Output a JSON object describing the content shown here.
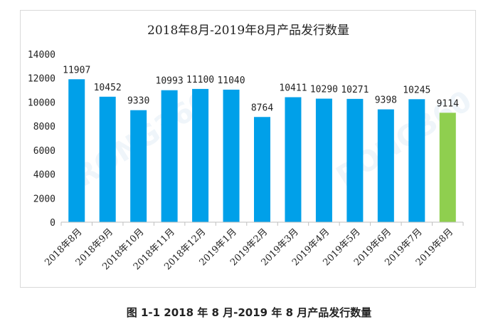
{
  "chart_data": {
    "type": "bar",
    "title": "2018年8月-2019年8月产品发行数量",
    "xlabel": "",
    "ylabel": "",
    "ylim": [
      0,
      14000
    ],
    "yticks": [
      0,
      2000,
      4000,
      6000,
      8000,
      10000,
      12000,
      14000
    ],
    "grid": false,
    "legend": "none",
    "categories": [
      "2018年8月",
      "2018年9月",
      "2018年10月",
      "2018年11月",
      "2018年12月",
      "2019年1月",
      "2019年2月",
      "2019年3月",
      "2019年4月",
      "2019年5月",
      "2019年6月",
      "2019年7月",
      "2019年8月"
    ],
    "values": [
      11907,
      10452,
      9330,
      10993,
      11100,
      11040,
      8764,
      10411,
      10290,
      10271,
      9398,
      10245,
      9114
    ],
    "data_labels": true,
    "colors": {
      "default": "#00a0e9",
      "highlight": "#8fcf4f"
    },
    "highlight_index": 12
  },
  "watermark": {
    "left": "RONG360",
    "right": "RONG360"
  },
  "caption": "图 1-1 2018 年 8 月-2019 年 8 月产品发行数量"
}
